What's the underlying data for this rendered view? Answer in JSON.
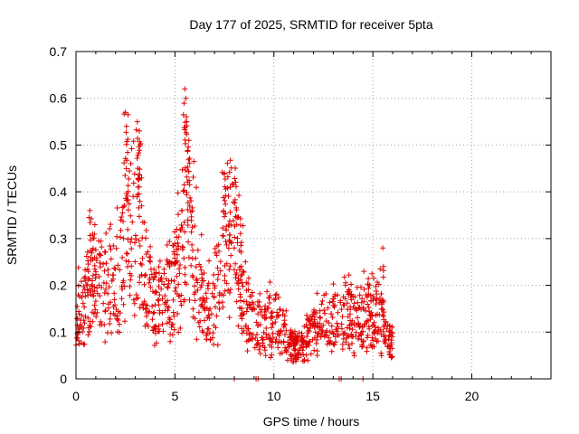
{
  "chart_data": {
    "type": "scatter",
    "title": "Day 177 of 2025, SRMTID for receiver 5pta",
    "xlabel": "GPS time / hours",
    "ylabel": "SRMTID / TECUs",
    "xlim": [
      0,
      24
    ],
    "ylim": [
      0,
      0.7
    ],
    "xticks": [
      0,
      5,
      10,
      15,
      20
    ],
    "xtick_labels": [
      "0",
      "5",
      "10",
      "15",
      "20"
    ],
    "yticks": [
      0,
      0.1,
      0.2,
      0.3,
      0.4,
      0.5,
      0.6,
      0.7
    ],
    "ytick_labels": [
      "0",
      "0.1",
      "0.2",
      "0.3",
      "0.4",
      "0.5",
      "0.6",
      "0.7"
    ],
    "grid": true,
    "marker": "plus",
    "colors": {
      "series": "#e00000",
      "grid": "#a0a0a0",
      "axis": "#000000"
    },
    "envelope": [
      {
        "x": 0.0,
        "y": 0.12
      },
      {
        "x": 0.4,
        "y": 0.16
      },
      {
        "x": 0.8,
        "y": 0.2
      },
      {
        "x": 1.2,
        "y": 0.19
      },
      {
        "x": 1.6,
        "y": 0.18
      },
      {
        "x": 2.0,
        "y": 0.2
      },
      {
        "x": 2.4,
        "y": 0.26
      },
      {
        "x": 2.6,
        "y": 0.34
      },
      {
        "x": 2.8,
        "y": 0.28
      },
      {
        "x": 3.0,
        "y": 0.33
      },
      {
        "x": 3.3,
        "y": 0.27
      },
      {
        "x": 3.6,
        "y": 0.2
      },
      {
        "x": 4.0,
        "y": 0.15
      },
      {
        "x": 4.5,
        "y": 0.17
      },
      {
        "x": 5.0,
        "y": 0.2
      },
      {
        "x": 5.4,
        "y": 0.28
      },
      {
        "x": 5.7,
        "y": 0.36
      },
      {
        "x": 6.0,
        "y": 0.25
      },
      {
        "x": 6.4,
        "y": 0.16
      },
      {
        "x": 6.8,
        "y": 0.14
      },
      {
        "x": 7.2,
        "y": 0.2
      },
      {
        "x": 7.6,
        "y": 0.31
      },
      {
        "x": 8.0,
        "y": 0.3
      },
      {
        "x": 8.3,
        "y": 0.22
      },
      {
        "x": 8.6,
        "y": 0.15
      },
      {
        "x": 9.0,
        "y": 0.11
      },
      {
        "x": 9.5,
        "y": 0.12
      },
      {
        "x": 10.0,
        "y": 0.12
      },
      {
        "x": 10.5,
        "y": 0.09
      },
      {
        "x": 11.0,
        "y": 0.06
      },
      {
        "x": 11.5,
        "y": 0.08
      },
      {
        "x": 12.0,
        "y": 0.1
      },
      {
        "x": 12.5,
        "y": 0.11
      },
      {
        "x": 13.0,
        "y": 0.12
      },
      {
        "x": 13.5,
        "y": 0.13
      },
      {
        "x": 14.0,
        "y": 0.12
      },
      {
        "x": 14.5,
        "y": 0.13
      },
      {
        "x": 15.0,
        "y": 0.14
      },
      {
        "x": 15.4,
        "y": 0.13
      },
      {
        "x": 15.8,
        "y": 0.08
      },
      {
        "x": 16.0,
        "y": 0.07
      }
    ],
    "spikes": [
      {
        "x": 0.7,
        "y": 0.36
      },
      {
        "x": 2.5,
        "y": 0.57
      },
      {
        "x": 2.55,
        "y": 0.54
      },
      {
        "x": 3.1,
        "y": 0.55
      },
      {
        "x": 3.2,
        "y": 0.53
      },
      {
        "x": 3.25,
        "y": 0.5
      },
      {
        "x": 5.5,
        "y": 0.62
      },
      {
        "x": 5.55,
        "y": 0.6
      },
      {
        "x": 5.6,
        "y": 0.55
      },
      {
        "x": 5.7,
        "y": 0.51
      },
      {
        "x": 7.5,
        "y": 0.44
      },
      {
        "x": 7.8,
        "y": 0.41
      },
      {
        "x": 15.5,
        "y": 0.28
      }
    ],
    "zero_markers": [
      8.0,
      9.1,
      9.2,
      13.3,
      13.4,
      14.5
    ],
    "data_range_hours": [
      0,
      16
    ]
  }
}
